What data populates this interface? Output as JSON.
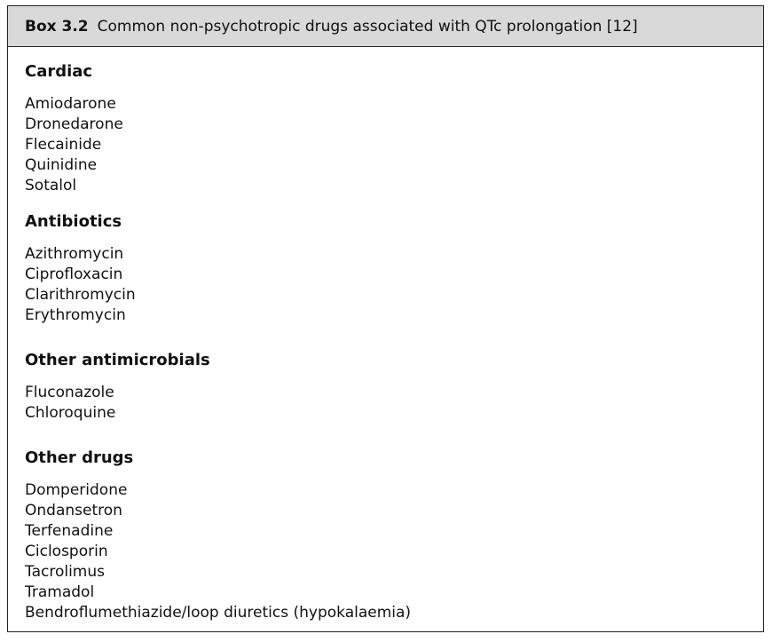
{
  "box": {
    "label": "Box 3.2",
    "title": "Common non-psychotropic drugs associated with QTc prolongation [12]",
    "header_bg": "#d9d9d9",
    "border_color": "#222222"
  },
  "sections": [
    {
      "heading": "Cardiac",
      "items": [
        "Amiodarone",
        "Dronedarone",
        "Flecainide",
        "Quinidine",
        "Sotalol"
      ]
    },
    {
      "heading": "Antibiotics",
      "items": [
        "Azithromycin",
        "Ciprofloxacin",
        "Clarithromycin",
        "Erythromycin"
      ]
    },
    {
      "heading": "Other antimicrobials",
      "items": [
        "Fluconazole",
        "Chloroquine"
      ]
    },
    {
      "heading": "Other drugs",
      "items": [
        "Domperidone",
        "Ondansetron",
        "Terfenadine",
        "Ciclosporin",
        "Tacrolimus",
        "Tramadol",
        "Bendroflumethiazide/loop diuretics (hypokalaemia)"
      ]
    }
  ]
}
